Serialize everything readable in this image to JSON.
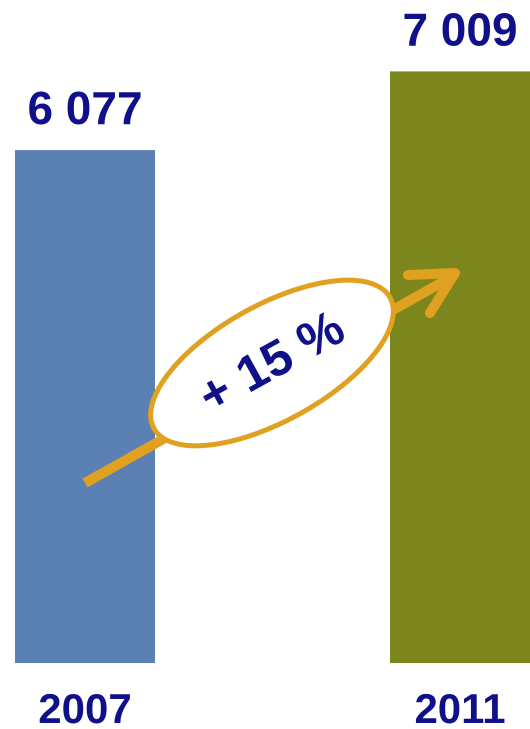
{
  "chart_data": {
    "type": "bar",
    "categories": [
      "2007",
      "2011"
    ],
    "values": [
      6077,
      7009
    ],
    "value_labels": [
      "6 077",
      "7 009"
    ],
    "colors": [
      "#5b80b4",
      "#7b861c"
    ],
    "ylim": [
      0,
      7855
    ],
    "annotation": "+ 15 %"
  }
}
